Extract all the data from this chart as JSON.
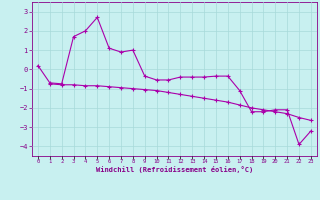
{
  "xlabel": "Windchill (Refroidissement éolien,°C)",
  "background_color": "#c8f0f0",
  "grid_color": "#a8dada",
  "line_color": "#aa00aa",
  "x_hours": [
    0,
    1,
    2,
    3,
    4,
    5,
    6,
    7,
    8,
    9,
    10,
    11,
    12,
    13,
    14,
    15,
    16,
    17,
    18,
    19,
    20,
    21,
    22,
    23
  ],
  "line1_y": [
    0.2,
    -0.7,
    -0.75,
    1.7,
    2.0,
    2.7,
    1.1,
    0.9,
    1.0,
    -0.35,
    -0.55,
    -0.55,
    -0.4,
    -0.4,
    -0.4,
    -0.35,
    -0.35,
    -1.1,
    -2.2,
    -2.2,
    -2.1,
    -2.1,
    -3.9,
    -3.2
  ],
  "line2_y": [
    null,
    -0.75,
    -0.8,
    -0.8,
    -0.85,
    -0.85,
    -0.9,
    -0.95,
    -1.0,
    -1.05,
    -1.1,
    -1.2,
    -1.3,
    -1.4,
    -1.5,
    -1.6,
    -1.7,
    -1.85,
    -2.0,
    -2.1,
    -2.2,
    -2.3,
    -2.5,
    -2.65
  ],
  "ylim": [
    -4.5,
    3.5
  ],
  "yticks": [
    -4,
    -3,
    -2,
    -1,
    0,
    1,
    2,
    3
  ],
  "xlim": [
    -0.5,
    23.5
  ],
  "figsize": [
    3.2,
    2.0
  ],
  "dpi": 100
}
